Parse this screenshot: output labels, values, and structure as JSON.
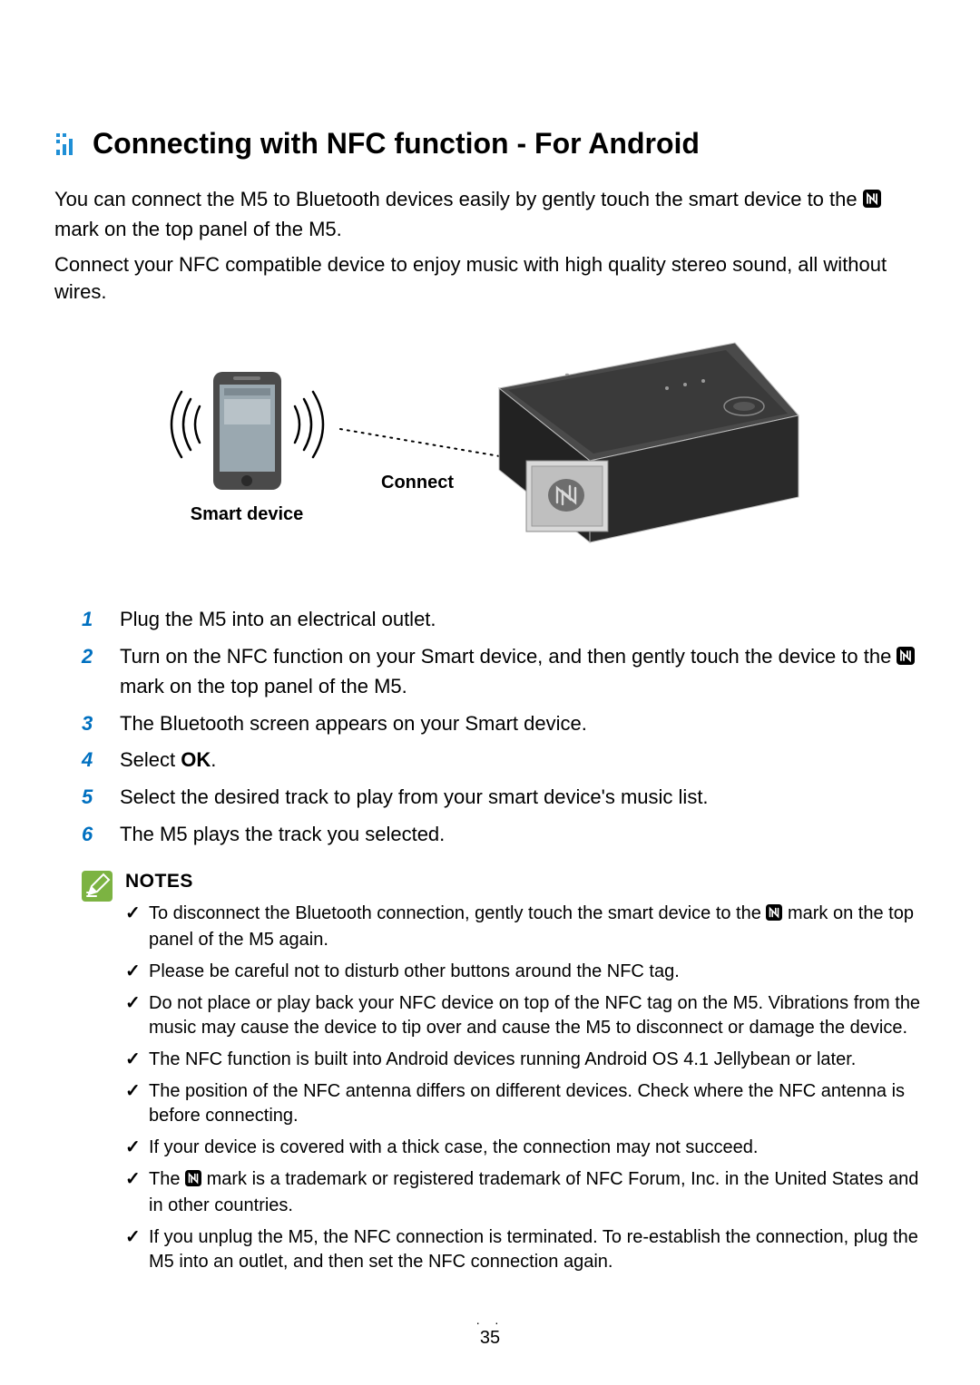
{
  "heading": {
    "title": "Connecting with NFC function - For Android",
    "icon_color": "#1f8fd6"
  },
  "intro": {
    "line1_pre": "You can connect the M5 to Bluetooth devices easily by gently touch the smart device to the ",
    "line1_post": " mark on the top panel of the M5.",
    "line2": "Connect your NFC compatible device to enjoy music with high quality stereo sound, all without wires."
  },
  "diagram": {
    "smart_device_label": "Smart device",
    "connect_label": "Connect",
    "phone_body": "#4a4a4a",
    "phone_screen": "#9aa8b0",
    "speaker_top": "#3d3d3d",
    "speaker_front": "#2a2a2a",
    "speaker_edge_light": "#bdbdbd",
    "nfc_box_fill": "#bfbfbf",
    "wave_color": "#000000",
    "dotted_color": "#000000"
  },
  "steps": [
    {
      "num": "1",
      "body_parts": [
        {
          "t": "Plug the M5 into an electrical outlet."
        }
      ]
    },
    {
      "num": "2",
      "body_parts": [
        {
          "t": "Turn on the NFC function on your Smart device, and then gently touch the device to the "
        },
        {
          "nfc": true
        },
        {
          "t": " mark on the top panel of the M5."
        }
      ]
    },
    {
      "num": "3",
      "body_parts": [
        {
          "t": "The Bluetooth screen appears on your Smart device."
        }
      ]
    },
    {
      "num": "4",
      "body_parts": [
        {
          "t": "Select "
        },
        {
          "t": "OK",
          "bold": true
        },
        {
          "t": "."
        }
      ]
    },
    {
      "num": "5",
      "body_parts": [
        {
          "t": "Select the desired track to play from your smart device's music list."
        }
      ]
    },
    {
      "num": "6",
      "body_parts": [
        {
          "t": "The M5 plays the track you selected."
        }
      ]
    }
  ],
  "notes": {
    "title": "NOTES",
    "icon_bg": "#7cb342",
    "items": [
      {
        "parts": [
          {
            "t": "To disconnect the Bluetooth connection, gently touch the smart device to the "
          },
          {
            "nfc": true
          },
          {
            "t": " mark on the top panel of the M5 again."
          }
        ]
      },
      {
        "parts": [
          {
            "t": "Please be careful not to disturb other buttons around the NFC tag."
          }
        ]
      },
      {
        "parts": [
          {
            "t": "Do not place or play back your NFC device on top of the NFC tag on the M5. Vibrations from the music may cause the device to tip over and cause the M5 to disconnect or damage the device."
          }
        ]
      },
      {
        "parts": [
          {
            "t": "The NFC function is built into Android devices running Android OS 4.1 Jellybean or later."
          }
        ]
      },
      {
        "parts": [
          {
            "t": "The position of the NFC antenna differs on different devices. Check where the NFC antenna is before connecting."
          }
        ]
      },
      {
        "parts": [
          {
            "t": "If your device is covered with a thick case, the connection may not succeed."
          }
        ]
      },
      {
        "parts": [
          {
            "t": "The "
          },
          {
            "nfc": true
          },
          {
            "t": " mark is a trademark or registered trademark of NFC Forum, Inc. in the United States and in other countries."
          }
        ]
      },
      {
        "parts": [
          {
            "t": "If you unplug the M5, the NFC connection is terminated. To re-establish the connection, plug the M5 into an outlet, and then set the NFC connection again."
          }
        ]
      }
    ]
  },
  "page_number": "35",
  "page_dots": "· ·",
  "colors": {
    "step_num": "#0070c0",
    "text": "#000000"
  }
}
